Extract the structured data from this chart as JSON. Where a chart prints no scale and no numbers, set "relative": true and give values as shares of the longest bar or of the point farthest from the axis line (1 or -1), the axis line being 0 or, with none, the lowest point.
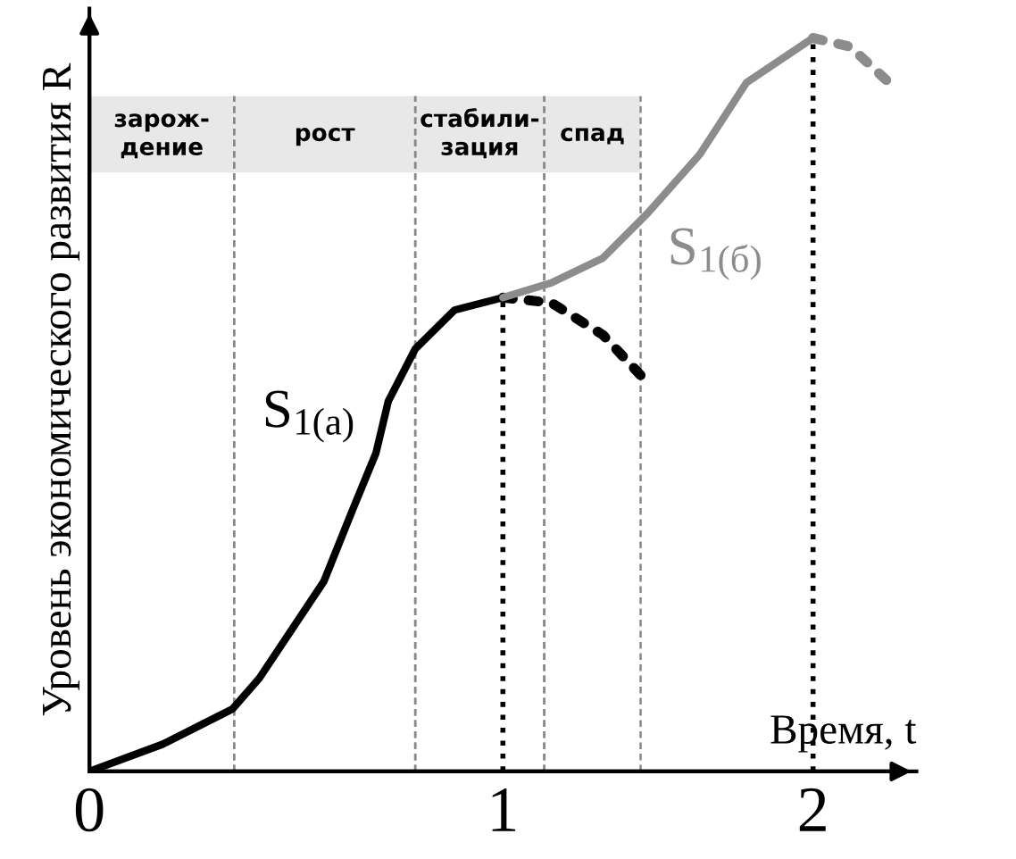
{
  "chart_data": {
    "type": "line",
    "relative": true,
    "xlabel": "Время, t",
    "ylabel": "Уровень экономического развития R",
    "xlim": [
      0,
      2.0
    ],
    "xticks": [
      0,
      1,
      {
        "value": 1.75,
        "label": "2"
      }
    ],
    "tick_labels": "x",
    "grid": false,
    "legend": false,
    "series": [
      {
        "name": "S$_{1(а)}$",
        "color": "#000000",
        "line_style": "solid",
        "x": [
          0,
          0.177,
          0.346,
          0.411,
          0.567,
          0.636,
          0.693,
          0.723,
          0.788,
          0.883,
          1
        ],
        "values": [
          0,
          0.037,
          0.085,
          0.127,
          0.259,
          0.356,
          0.434,
          0.505,
          0.576,
          0.629,
          0.646
        ]
      },
      {
        "color": "#000000",
        "line_style": "dotted",
        "x": [
          1,
          1.117,
          1.242,
          1.338
        ],
        "values": [
          0.646,
          0.639,
          0.595,
          0.537
        ]
      },
      {
        "name": "S$_{1(б)}$",
        "color": "#8c8c8c",
        "line_style": "solid",
        "x": [
          1,
          1.117,
          1.242,
          1.35,
          1.476,
          1.589,
          1.75
        ],
        "values": [
          0.646,
          0.666,
          0.7,
          0.761,
          0.841,
          0.939,
          1
        ]
      },
      {
        "color": "#8c8c8c",
        "line_style": "dotted",
        "x": [
          1.75,
          1.84,
          1.93
        ],
        "values": [
          1,
          0.988,
          0.941
        ]
      }
    ],
    "bands": [
      {
        "axis": "x",
        "from": 0,
        "to": 0.35,
        "label": "зарож-\nдение",
        "color": "#e8e8e8"
      },
      {
        "axis": "x",
        "from": 0.35,
        "to": 0.788,
        "label": "рост",
        "color": "#e8e8e8"
      },
      {
        "axis": "x",
        "from": 0.788,
        "to": 1.1,
        "label": "стабили-\nзация",
        "color": "#e8e8e8"
      },
      {
        "axis": "x",
        "from": 1.1,
        "to": 1.333,
        "label": "спад",
        "color": "#e8e8e8"
      }
    ],
    "ref_lines": [
      {
        "axis": "x",
        "value": 1,
        "color": "#000000",
        "line_style": "dotted"
      },
      {
        "axis": "x",
        "value": 1.75,
        "color": "#000000",
        "line_style": "dotted"
      }
    ]
  }
}
